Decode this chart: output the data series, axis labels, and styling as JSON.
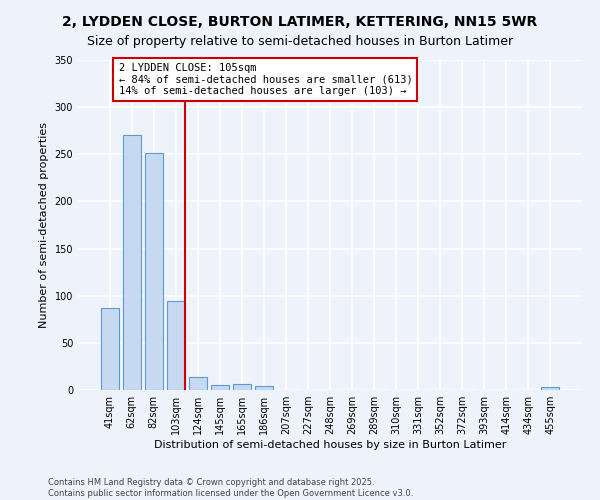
{
  "title_line1": "2, LYDDEN CLOSE, BURTON LATIMER, KETTERING, NN15 5WR",
  "title_line2": "Size of property relative to semi-detached houses in Burton Latimer",
  "xlabel": "Distribution of semi-detached houses by size in Burton Latimer",
  "ylabel": "Number of semi-detached properties",
  "categories": [
    "41sqm",
    "62sqm",
    "82sqm",
    "103sqm",
    "124sqm",
    "145sqm",
    "165sqm",
    "186sqm",
    "207sqm",
    "227sqm",
    "248sqm",
    "269sqm",
    "289sqm",
    "310sqm",
    "331sqm",
    "352sqm",
    "372sqm",
    "393sqm",
    "414sqm",
    "434sqm",
    "455sqm"
  ],
  "values": [
    87,
    270,
    251,
    94,
    14,
    5,
    6,
    4,
    0,
    0,
    0,
    0,
    0,
    0,
    0,
    0,
    0,
    0,
    0,
    0,
    3
  ],
  "bar_color": "#c7d9f0",
  "bar_edge_color": "#5b9bd5",
  "vline_idx": 3,
  "annotation_title": "2 LYDDEN CLOSE: 105sqm",
  "annotation_line1": "← 84% of semi-detached houses are smaller (613)",
  "annotation_line2": "14% of semi-detached houses are larger (103) →",
  "annotation_box_color": "#ffffff",
  "annotation_box_edge": "#cc0000",
  "vline_color": "#cc0000",
  "ylim": [
    0,
    350
  ],
  "yticks": [
    0,
    50,
    100,
    150,
    200,
    250,
    300,
    350
  ],
  "footer_line1": "Contains HM Land Registry data © Crown copyright and database right 2025.",
  "footer_line2": "Contains public sector information licensed under the Open Government Licence v3.0.",
  "bg_color": "#eef2fb",
  "plot_bg_color": "#eef2fb",
  "grid_color": "#ffffff",
  "title_fontsize": 10,
  "subtitle_fontsize": 9,
  "ylabel_fontsize": 8,
  "xlabel_fontsize": 8,
  "tick_fontsize": 7,
  "footer_fontsize": 6,
  "annotation_fontsize": 7.5
}
